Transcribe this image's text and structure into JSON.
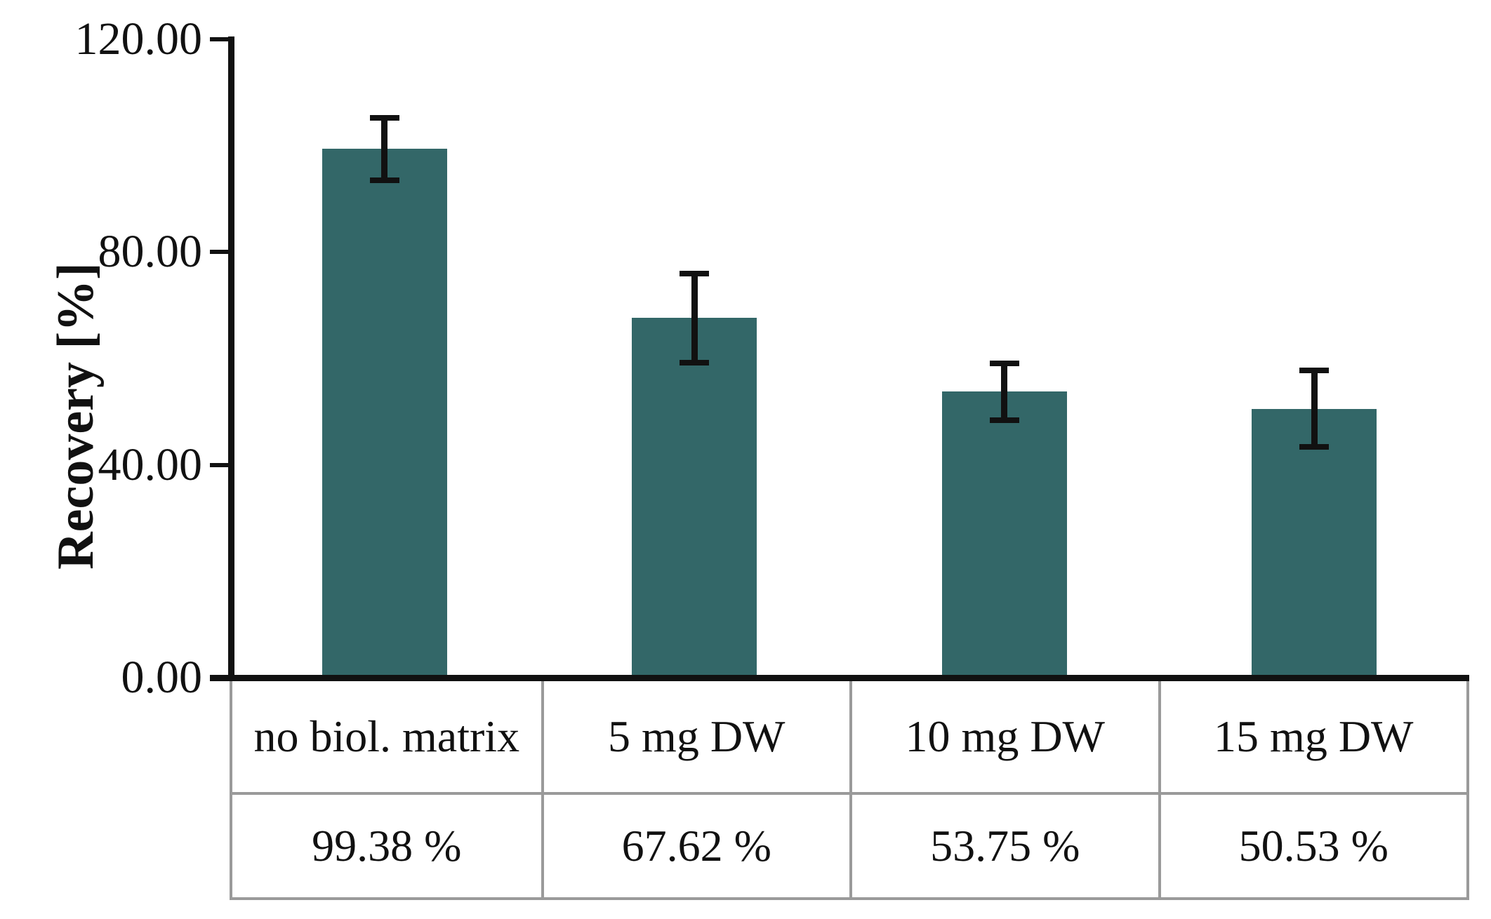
{
  "chart_data": {
    "type": "bar",
    "title": "",
    "ylabel": "Recovery [%]",
    "xlabel": "",
    "categories": [
      "no biol. matrix",
      "5 mg DW",
      "10 mg DW",
      "15 mg DW"
    ],
    "values": [
      99.38,
      67.62,
      53.75,
      50.53
    ],
    "value_labels": [
      "99.38 %",
      "67.62 %",
      "53.75 %",
      "50.53 %"
    ],
    "errors": [
      5.9,
      8.4,
      5.3,
      7.2
    ],
    "y_ticks": [
      0,
      40,
      80,
      120
    ],
    "y_tick_labels": [
      "0.00",
      "40.00",
      "80.00",
      "120.00"
    ],
    "ylim": [
      0,
      120
    ],
    "grid": false,
    "legend": false,
    "bar_color": "#336768",
    "axis_color": "#111111",
    "error_bar_color": "#111111",
    "table_border_color": "#9a9a9a"
  }
}
